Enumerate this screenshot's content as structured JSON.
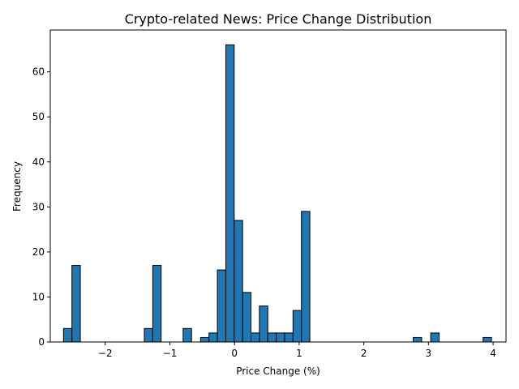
{
  "chart_data": {
    "type": "bar",
    "subtype": "histogram",
    "title": "Crypto-related News: Price Change Distribution",
    "xlabel": "Price Change (%)",
    "ylabel": "Frequency",
    "xlim": [
      -2.85,
      4.2
    ],
    "ylim": [
      0,
      69.3
    ],
    "bin_width": 0.13,
    "x_ticks": [
      {
        "value": -2,
        "label": "−2"
      },
      {
        "value": -1,
        "label": "−1"
      },
      {
        "value": 0,
        "label": "0"
      },
      {
        "value": 1,
        "label": "1"
      },
      {
        "value": 2,
        "label": "2"
      },
      {
        "value": 3,
        "label": "3"
      },
      {
        "value": 4,
        "label": "4"
      }
    ],
    "y_ticks": [
      {
        "value": 0,
        "label": "0"
      },
      {
        "value": 10,
        "label": "10"
      },
      {
        "value": 20,
        "label": "20"
      },
      {
        "value": 30,
        "label": "30"
      },
      {
        "value": 40,
        "label": "40"
      },
      {
        "value": 50,
        "label": "50"
      },
      {
        "value": 60,
        "label": "60"
      }
    ],
    "bins": [
      {
        "x": -2.58,
        "count": 3
      },
      {
        "x": -2.45,
        "count": 17
      },
      {
        "x": -1.33,
        "count": 3
      },
      {
        "x": -1.2,
        "count": 17
      },
      {
        "x": -0.73,
        "count": 3
      },
      {
        "x": -0.46,
        "count": 1
      },
      {
        "x": -0.33,
        "count": 2
      },
      {
        "x": -0.2,
        "count": 16
      },
      {
        "x": -0.07,
        "count": 66
      },
      {
        "x": 0.06,
        "count": 27
      },
      {
        "x": 0.19,
        "count": 11
      },
      {
        "x": 0.32,
        "count": 2
      },
      {
        "x": 0.45,
        "count": 8
      },
      {
        "x": 0.58,
        "count": 2
      },
      {
        "x": 0.71,
        "count": 2
      },
      {
        "x": 0.84,
        "count": 2
      },
      {
        "x": 0.97,
        "count": 7
      },
      {
        "x": 1.1,
        "count": 29
      },
      {
        "x": 2.83,
        "count": 1
      },
      {
        "x": 3.1,
        "count": 2
      },
      {
        "x": 3.91,
        "count": 1
      }
    ],
    "bar_color": "#1f77b4",
    "edge_color": "#000000",
    "grid": false,
    "legend": "none"
  }
}
